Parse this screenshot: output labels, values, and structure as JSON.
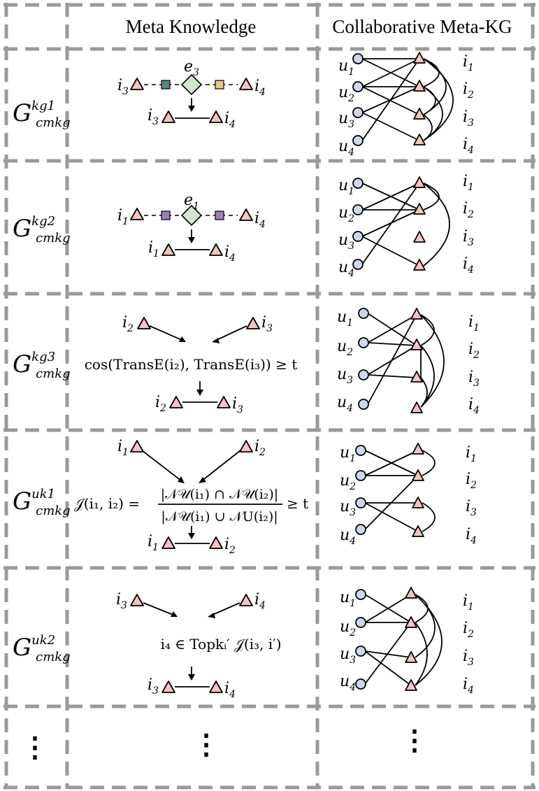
{
  "header": {
    "col_meta": "Meta Knowledge",
    "col_collab": "Collaborative Meta-KG"
  },
  "colors": {
    "item_fill": "#f4c4c2",
    "user_fill": "#cdd9ea",
    "entity_fill": "#cfe6cc",
    "relation_green": "#4d8b80",
    "relation_orange": "#f4c08a",
    "relation_purple": "#9a7fbf",
    "grid": "#9a9a9a"
  },
  "rows": [
    {
      "graph": {
        "main": "G",
        "sup": "kg1",
        "sub": "cmkg"
      },
      "meta": {
        "kind": "path",
        "left": {
          "main": "i",
          "sub": "3"
        },
        "right": {
          "main": "i",
          "sub": "4"
        },
        "entity": {
          "main": "e",
          "sub": "3"
        },
        "relation_colors": [
          "#4d8b80",
          "#f4c08a"
        ]
      },
      "users": [
        {
          "main": "u",
          "sub": "1"
        },
        {
          "main": "u",
          "sub": "2"
        },
        {
          "main": "u",
          "sub": "3"
        },
        {
          "main": "u",
          "sub": "4"
        }
      ],
      "items": [
        {
          "main": "i",
          "sub": "1"
        },
        {
          "main": "i",
          "sub": "2"
        },
        {
          "main": "i",
          "sub": "3"
        },
        {
          "main": "i",
          "sub": "4"
        }
      ]
    },
    {
      "graph": {
        "main": "G",
        "sup": "kg2",
        "sub": "cmkg"
      },
      "meta": {
        "kind": "path",
        "left": {
          "main": "i",
          "sub": "1"
        },
        "right": {
          "main": "i",
          "sub": "4"
        },
        "entity": {
          "main": "e",
          "sub": "1"
        },
        "relation_colors": [
          "#9a7fbf",
          "#9a7fbf"
        ]
      },
      "users": [
        {
          "main": "u",
          "sub": "1"
        },
        {
          "main": "u",
          "sub": "2"
        },
        {
          "main": "u",
          "sub": "3"
        },
        {
          "main": "u",
          "sub": "4"
        }
      ],
      "items": [
        {
          "main": "i",
          "sub": "1"
        },
        {
          "main": "i",
          "sub": "2"
        },
        {
          "main": "i",
          "sub": "3"
        },
        {
          "main": "i",
          "sub": "4"
        }
      ]
    },
    {
      "graph": {
        "main": "G",
        "sup": "kg3",
        "sub": "cmkg"
      },
      "meta": {
        "kind": "formula",
        "left": {
          "main": "i",
          "sub": "2"
        },
        "right": {
          "main": "i",
          "sub": "3"
        },
        "formula": "cos(TransE(i₂), TransE(i₃)) ≥ t"
      },
      "users": [
        {
          "main": "u",
          "sub": "1"
        },
        {
          "main": "u",
          "sub": "2"
        },
        {
          "main": "u",
          "sub": "3"
        },
        {
          "main": "u",
          "sub": "4"
        }
      ],
      "items": [
        {
          "main": "i",
          "sub": "1"
        },
        {
          "main": "i",
          "sub": "2"
        },
        {
          "main": "i",
          "sub": "3"
        },
        {
          "main": "i",
          "sub": "4"
        }
      ]
    },
    {
      "graph": {
        "main": "G",
        "sup": "uk1",
        "sub": "cmkg"
      },
      "meta": {
        "kind": "fraction",
        "left": {
          "main": "i",
          "sub": "1"
        },
        "right": {
          "main": "i",
          "sub": "2"
        },
        "lhs": "𝒥(i₁, i₂) =",
        "numerator": "|𝒩𝒰(i₁) ∩ 𝒩𝒰(i₂)|",
        "denominator": "|𝒩𝒰(i₁) ∪ 𝒩U(i₂)|",
        "rhs": "≥ t"
      },
      "users": [
        {
          "main": "u",
          "sub": "1"
        },
        {
          "main": "u",
          "sub": "2"
        },
        {
          "main": "u",
          "sub": "3"
        },
        {
          "main": "u",
          "sub": "4"
        }
      ],
      "items": [
        {
          "main": "i",
          "sub": "1"
        },
        {
          "main": "i",
          "sub": "2"
        },
        {
          "main": "i",
          "sub": "3"
        },
        {
          "main": "i",
          "sub": "4"
        }
      ]
    },
    {
      "graph": {
        "main": "G",
        "sup": "uk2",
        "sub": "cmkg"
      },
      "meta": {
        "kind": "formula",
        "left": {
          "main": "i",
          "sub": "3"
        },
        "right": {
          "main": "i",
          "sub": "4"
        },
        "formula": "i₄ ∈ Topkᵢ′ 𝒥(i₃, i′)"
      },
      "users": [
        {
          "main": "u",
          "sub": "1"
        },
        {
          "main": "u",
          "sub": "2"
        },
        {
          "main": "u",
          "sub": "3"
        },
        {
          "main": "u",
          "sub": "4"
        }
      ],
      "items": [
        {
          "main": "i",
          "sub": "1"
        },
        {
          "main": "i",
          "sub": "2"
        },
        {
          "main": "i",
          "sub": "3"
        },
        {
          "main": "i",
          "sub": "4"
        }
      ]
    }
  ],
  "ellipsis": "⋮"
}
